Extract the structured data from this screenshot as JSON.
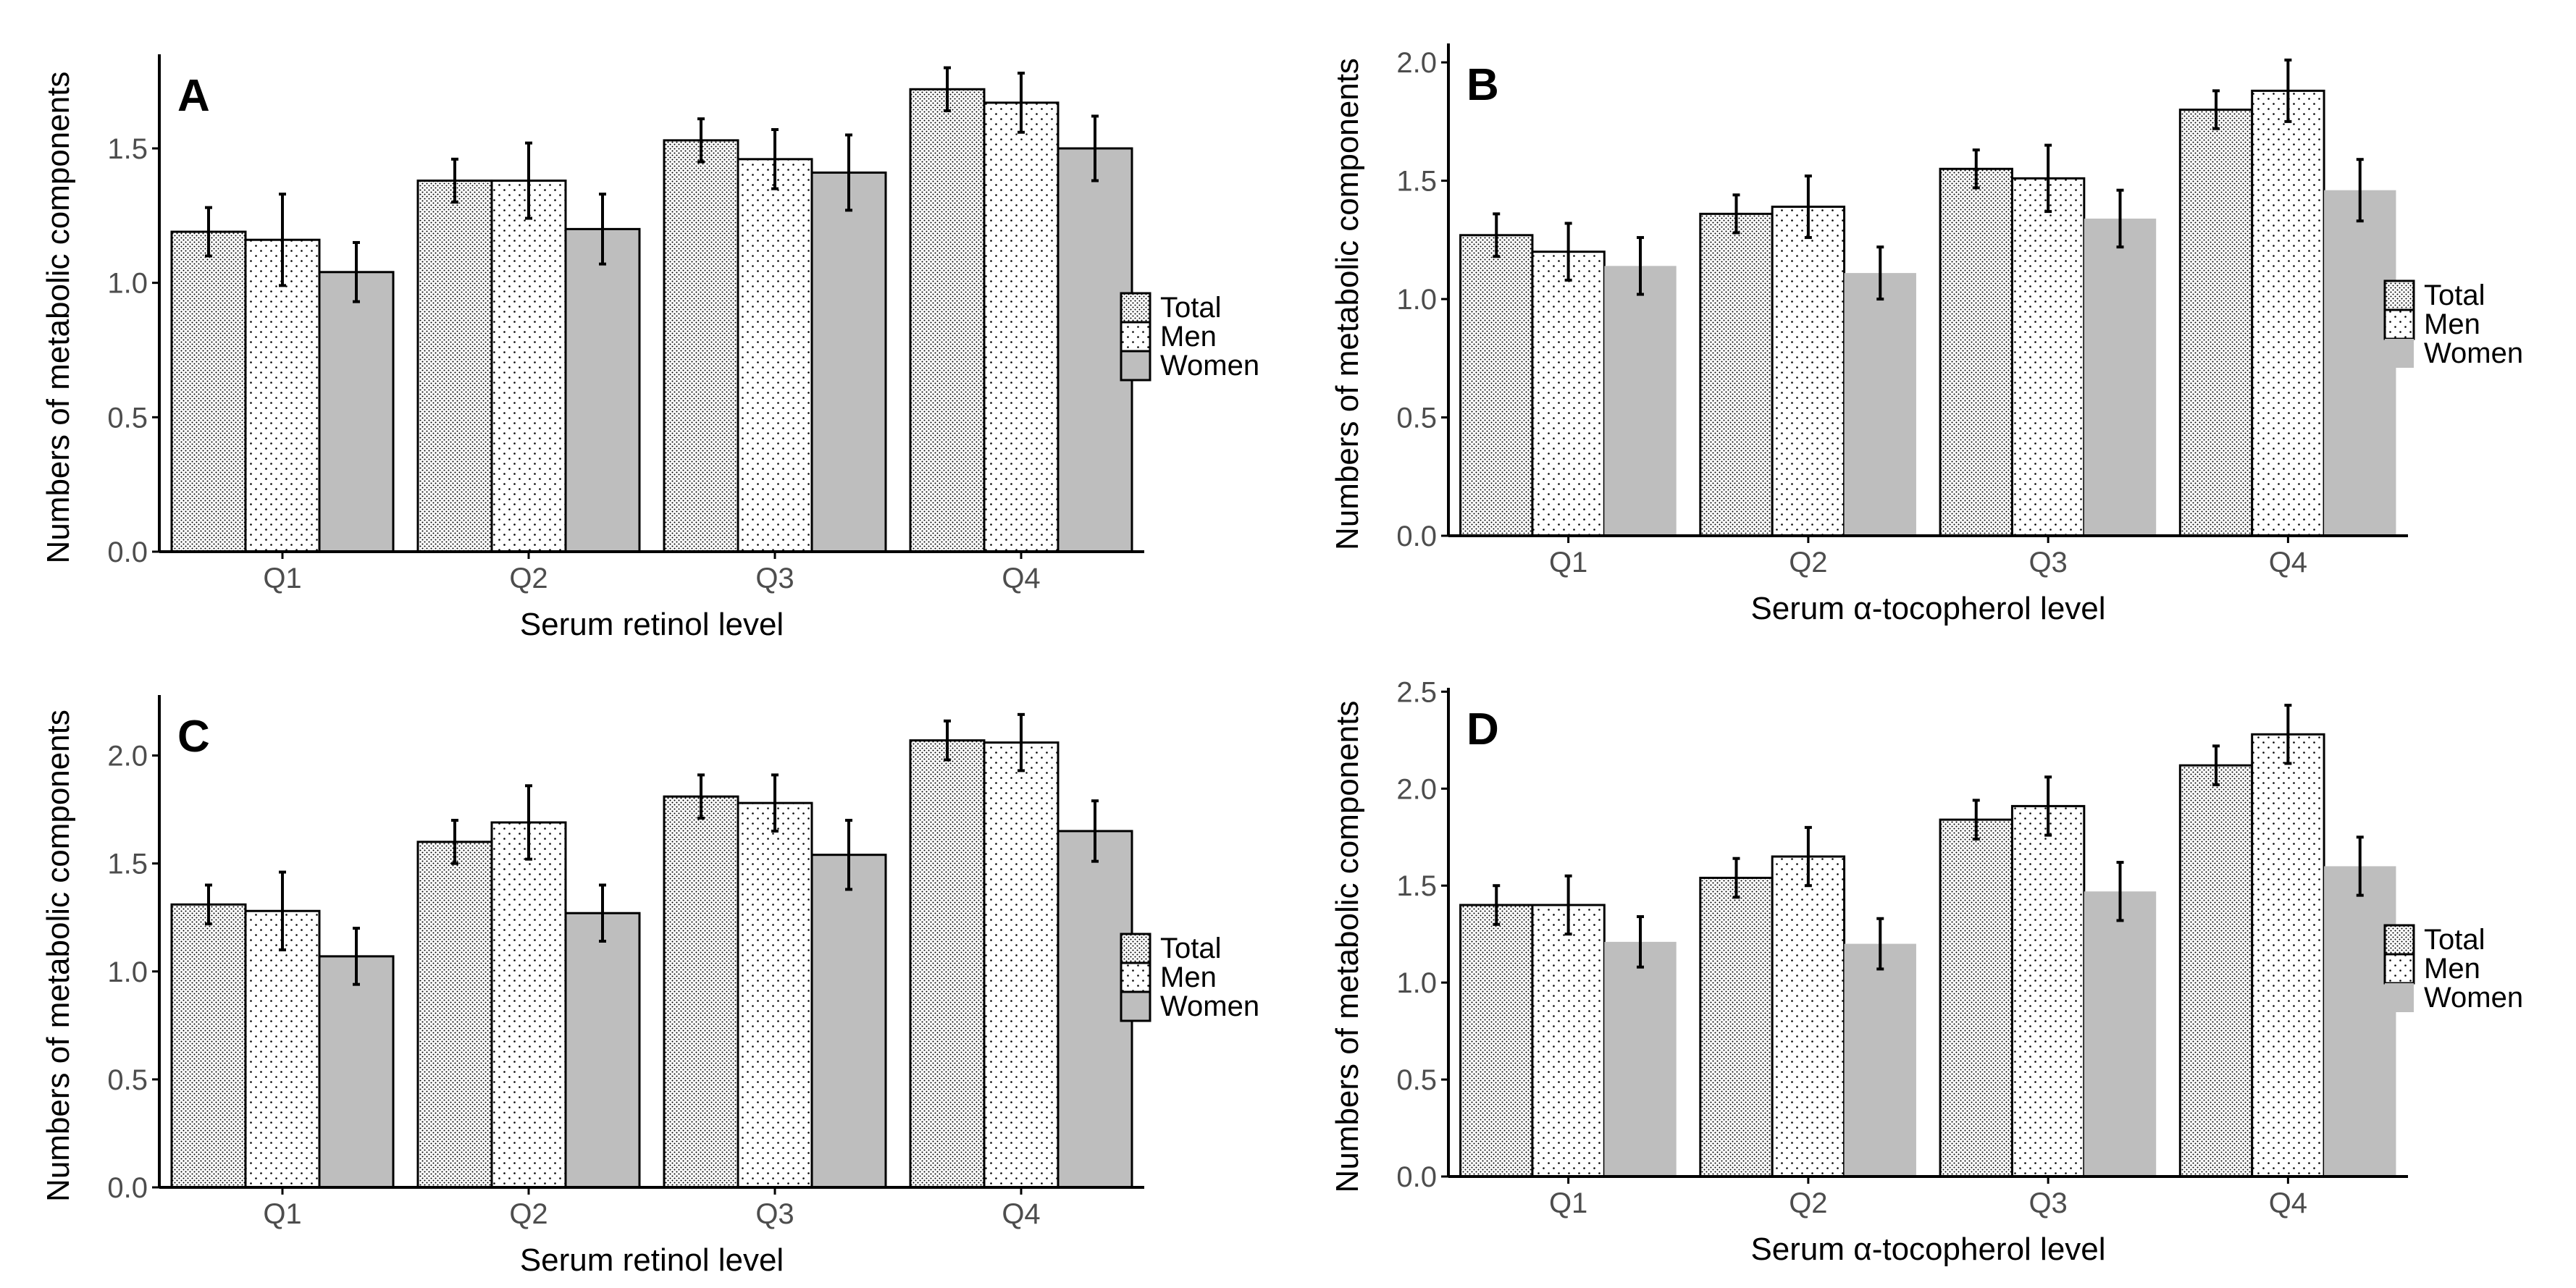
{
  "chart_data": [
    {
      "type": "bar",
      "panel_label": "A",
      "categories": [
        "Q1",
        "Q2",
        "Q3",
        "Q4"
      ],
      "series": [
        {
          "name": "Total",
          "values": [
            1.19,
            1.38,
            1.53,
            1.72
          ],
          "errors": [
            0.09,
            0.08,
            0.08,
            0.08
          ]
        },
        {
          "name": "Men",
          "values": [
            1.16,
            1.38,
            1.46,
            1.67
          ],
          "errors": [
            0.17,
            0.14,
            0.11,
            0.11
          ]
        },
        {
          "name": "Women",
          "values": [
            1.04,
            1.2,
            1.41,
            1.5
          ],
          "errors": [
            0.11,
            0.13,
            0.14,
            0.12
          ]
        }
      ],
      "xlabel": "Serum retinol level",
      "ylabel": "Numbers of metabolic components",
      "ylim": [
        0,
        1.85
      ],
      "yticks": [
        "0.0",
        "0.5",
        "1.0",
        "1.5"
      ],
      "legend_position": "right",
      "women_bar_outlined": true
    },
    {
      "type": "bar",
      "panel_label": "B",
      "categories": [
        "Q1",
        "Q2",
        "Q3",
        "Q4"
      ],
      "series": [
        {
          "name": "Total",
          "values": [
            1.27,
            1.36,
            1.55,
            1.8
          ],
          "errors": [
            0.09,
            0.08,
            0.08,
            0.08
          ]
        },
        {
          "name": "Men",
          "values": [
            1.2,
            1.39,
            1.51,
            1.88
          ],
          "errors": [
            0.12,
            0.13,
            0.14,
            0.13
          ]
        },
        {
          "name": "Women",
          "values": [
            1.14,
            1.11,
            1.34,
            1.46
          ],
          "errors": [
            0.12,
            0.11,
            0.12,
            0.13
          ]
        }
      ],
      "xlabel": "Serum α-tocopherol level",
      "ylabel": "Numbers of metabolic components",
      "ylim": [
        0,
        2.08
      ],
      "yticks": [
        "0.0",
        "0.5",
        "1.0",
        "1.5",
        "2.0"
      ],
      "legend_position": "right",
      "women_bar_outlined": false
    },
    {
      "type": "bar",
      "panel_label": "C",
      "categories": [
        "Q1",
        "Q2",
        "Q3",
        "Q4"
      ],
      "series": [
        {
          "name": "Total",
          "values": [
            1.31,
            1.6,
            1.81,
            2.07
          ],
          "errors": [
            0.09,
            0.1,
            0.1,
            0.09
          ]
        },
        {
          "name": "Men",
          "values": [
            1.28,
            1.69,
            1.78,
            2.06
          ],
          "errors": [
            0.18,
            0.17,
            0.13,
            0.13
          ]
        },
        {
          "name": "Women",
          "values": [
            1.07,
            1.27,
            1.54,
            1.65
          ],
          "errors": [
            0.13,
            0.13,
            0.16,
            0.14
          ]
        }
      ],
      "xlabel": "Serum retinol level",
      "ylabel": "Numbers of metabolic components",
      "ylim": [
        0,
        2.28
      ],
      "yticks": [
        "0.0",
        "0.5",
        "1.0",
        "1.5",
        "2.0"
      ],
      "legend_position": "right",
      "women_bar_outlined": true
    },
    {
      "type": "bar",
      "panel_label": "D",
      "categories": [
        "Q1",
        "Q2",
        "Q3",
        "Q4"
      ],
      "series": [
        {
          "name": "Total",
          "values": [
            1.4,
            1.54,
            1.84,
            2.12
          ],
          "errors": [
            0.1,
            0.1,
            0.1,
            0.1
          ]
        },
        {
          "name": "Men",
          "values": [
            1.4,
            1.65,
            1.91,
            2.28
          ],
          "errors": [
            0.15,
            0.15,
            0.15,
            0.15
          ]
        },
        {
          "name": "Women",
          "values": [
            1.21,
            1.2,
            1.47,
            1.6
          ],
          "errors": [
            0.13,
            0.13,
            0.15,
            0.15
          ]
        }
      ],
      "xlabel": "Serum α-tocopherol level",
      "ylabel": "Numbers of metabolic components",
      "ylim": [
        0,
        2.52
      ],
      "yticks": [
        "0.0",
        "0.5",
        "1.0",
        "1.5",
        "2.0",
        "2.5"
      ],
      "legend_position": "right",
      "women_bar_outlined": false
    }
  ],
  "colors": {
    "axis": "#000000",
    "tick_text": "#4d4d4d",
    "women_fill": "#bebebe",
    "bar_outline": "#000000",
    "background": "#ffffff"
  }
}
